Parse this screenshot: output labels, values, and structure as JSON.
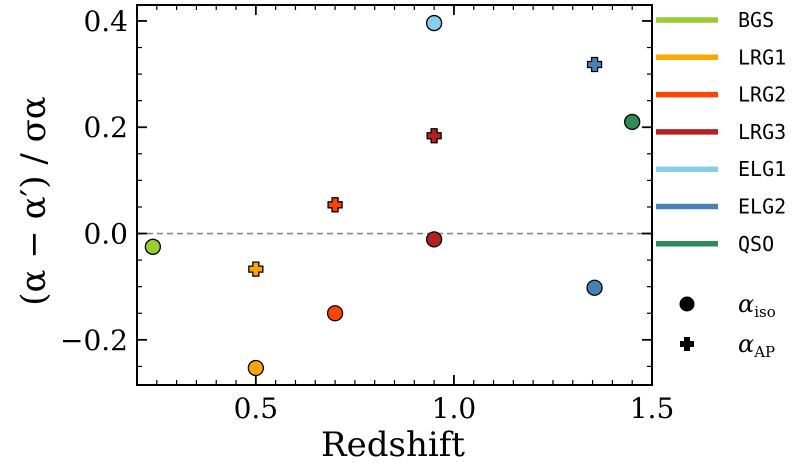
{
  "chart_data": {
    "type": "scatter",
    "xlabel": "Redshift",
    "ylabel": "(α − α′) / σα",
    "xlim": [
      0.2,
      1.5
    ],
    "ylim": [
      -0.285,
      0.43
    ],
    "x_ticks": [
      0.5,
      1.0,
      1.5
    ],
    "x_tick_labels": [
      "0.5",
      "1.0",
      "1.5"
    ],
    "y_ticks": [
      -0.2,
      0.0,
      0.2,
      0.4
    ],
    "y_tick_labels": [
      "−0.2",
      "0.0",
      "0.2",
      "0.4"
    ],
    "grid": false,
    "reference_line": {
      "y": 0.0,
      "style": "dashed",
      "color": "#888888"
    },
    "legend_placement": "outside-right",
    "tracers": [
      {
        "name": "BGS",
        "color": "#9acd32"
      },
      {
        "name": "LRG1",
        "color": "#ffa500"
      },
      {
        "name": "LRG2",
        "color": "#ff4500"
      },
      {
        "name": "LRG3",
        "color": "#b22222"
      },
      {
        "name": "ELG1",
        "color": "#87ceeb"
      },
      {
        "name": "ELG2",
        "color": "#4682b4"
      },
      {
        "name": "QSO",
        "color": "#2e8b57"
      }
    ],
    "marker_legend": [
      {
        "marker": "circle",
        "label": "α",
        "sub": "iso"
      },
      {
        "marker": "plus",
        "label": "α",
        "sub": "AP"
      }
    ],
    "points": [
      {
        "tracer": "BGS",
        "marker": "circle",
        "x": 0.24,
        "y": -0.025
      },
      {
        "tracer": "LRG1",
        "marker": "circle",
        "x": 0.5,
        "y": -0.253
      },
      {
        "tracer": "LRG1",
        "marker": "plus",
        "x": 0.5,
        "y": -0.067
      },
      {
        "tracer": "LRG2",
        "marker": "circle",
        "x": 0.7,
        "y": -0.15
      },
      {
        "tracer": "LRG2",
        "marker": "plus",
        "x": 0.7,
        "y": 0.054
      },
      {
        "tracer": "LRG3",
        "marker": "circle",
        "x": 0.95,
        "y": -0.011
      },
      {
        "tracer": "LRG3",
        "marker": "plus",
        "x": 0.95,
        "y": 0.184
      },
      {
        "tracer": "ELG1",
        "marker": "circle",
        "x": 0.95,
        "y": 0.396
      },
      {
        "tracer": "ELG2",
        "marker": "circle",
        "x": 1.355,
        "y": -0.102
      },
      {
        "tracer": "ELG2",
        "marker": "plus",
        "x": 1.355,
        "y": 0.318
      },
      {
        "tracer": "QSO",
        "marker": "circle",
        "x": 1.45,
        "y": 0.21
      }
    ]
  }
}
